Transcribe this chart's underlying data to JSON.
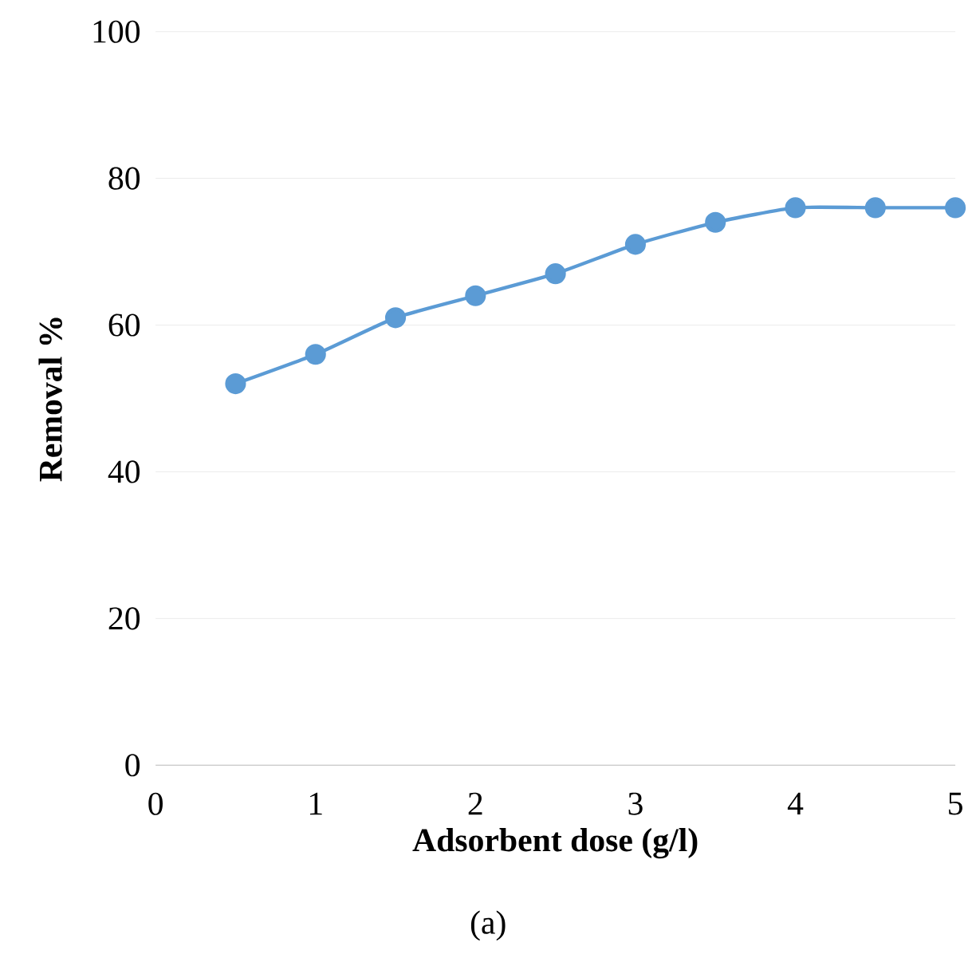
{
  "chart_data": {
    "type": "line",
    "xlabel": "Adsorbent dose (g/l)",
    "ylabel": "Removal %",
    "x": [
      0.5,
      1,
      1.5,
      2,
      2.5,
      3,
      3.5,
      4,
      4.5,
      5
    ],
    "series": [
      {
        "color": "#5b9bd5",
        "values": [
          52,
          56,
          61,
          64,
          67,
          71,
          74,
          76,
          76,
          76
        ]
      }
    ],
    "xlim": [
      0,
      5
    ],
    "xticks": [
      0,
      1,
      2,
      3,
      4,
      5
    ],
    "ylim": [
      0,
      100
    ],
    "yticks": [
      0,
      20,
      40,
      60,
      80,
      100
    ],
    "grid": "y",
    "marker": "circle",
    "line_style": "solid",
    "annotations": [
      "(a)"
    ]
  }
}
